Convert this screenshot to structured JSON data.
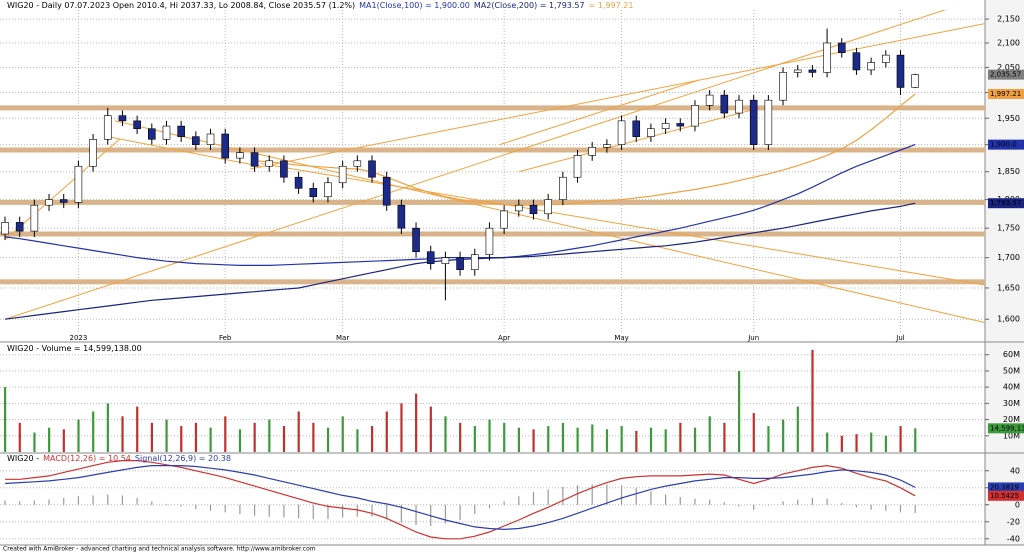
{
  "chart_data": [
    {
      "type": "candlestick",
      "title": "WIG20 - Daily 07.07.2023 Open 2010.4, Hi 2037.33, Lo 2008.84, Close 2035.57 (1.2%)",
      "categories": [
        null,
        null,
        null,
        null,
        null,
        "2023",
        null,
        null,
        null,
        null,
        null,
        null,
        null,
        null,
        null,
        "Feb",
        null,
        null,
        null,
        null,
        null,
        null,
        null,
        "Mar",
        null,
        null,
        null,
        null,
        null,
        null,
        null,
        null,
        null,
        null,
        "Apr",
        null,
        null,
        null,
        null,
        null,
        null,
        null,
        "May",
        null,
        null,
        null,
        null,
        null,
        null,
        null,
        null,
        "Jun",
        null,
        null,
        null,
        null,
        null,
        null,
        null,
        null,
        null,
        "Jul",
        null
      ],
      "open": [
        1740,
        1760,
        1745,
        1790,
        1800,
        1795,
        1860,
        1910,
        1955,
        1945,
        1930,
        1910,
        1935,
        1915,
        1900,
        1920,
        1875,
        1885,
        1860,
        1870,
        1840,
        1820,
        1805,
        1830,
        1860,
        1870,
        1840,
        1790,
        1750,
        1710,
        1690,
        1700,
        1680,
        1705,
        1750,
        1780,
        1790,
        1775,
        1800,
        1840,
        1880,
        1895,
        1900,
        1945,
        1915,
        1930,
        1940,
        1935,
        1975,
        1995,
        1960,
        1985,
        1900,
        1985,
        2040,
        2045,
        2040,
        2100,
        2080,
        2045,
        2060,
        2075,
        2010.4
      ],
      "high": [
        1770,
        1770,
        1800,
        1810,
        1810,
        1870,
        1920,
        1970,
        1965,
        1955,
        1940,
        1945,
        1945,
        1925,
        1930,
        1930,
        1895,
        1895,
        1880,
        1880,
        1850,
        1830,
        1840,
        1870,
        1880,
        1880,
        1850,
        1800,
        1760,
        1720,
        1710,
        1710,
        1715,
        1760,
        1790,
        1800,
        1800,
        1810,
        1850,
        1890,
        1905,
        1910,
        1955,
        1955,
        1940,
        1950,
        1950,
        1985,
        2005,
        2005,
        1995,
        1995,
        1995,
        2050,
        2055,
        2055,
        2130,
        2110,
        2090,
        2070,
        2085,
        2085,
        2037.33
      ],
      "low": [
        1730,
        1735,
        1735,
        1780,
        1785,
        1785,
        1850,
        1900,
        1935,
        1920,
        1900,
        1900,
        1905,
        1890,
        1890,
        1865,
        1865,
        1850,
        1850,
        1830,
        1810,
        1795,
        1795,
        1820,
        1850,
        1830,
        1780,
        1740,
        1700,
        1680,
        1630,
        1670,
        1670,
        1695,
        1740,
        1770,
        1765,
        1765,
        1790,
        1830,
        1870,
        1885,
        1890,
        1905,
        1905,
        1920,
        1925,
        1925,
        1965,
        1950,
        1950,
        1890,
        1890,
        1975,
        2030,
        2030,
        2030,
        2070,
        2035,
        2035,
        2050,
        1995,
        2008.84
      ],
      "close": [
        1760,
        1745,
        1790,
        1800,
        1795,
        1860,
        1910,
        1955,
        1945,
        1930,
        1910,
        1935,
        1915,
        1900,
        1920,
        1875,
        1885,
        1860,
        1870,
        1840,
        1820,
        1805,
        1830,
        1860,
        1870,
        1840,
        1790,
        1750,
        1710,
        1690,
        1700,
        1680,
        1705,
        1750,
        1780,
        1790,
        1775,
        1800,
        1840,
        1880,
        1895,
        1900,
        1945,
        1915,
        1930,
        1940,
        1935,
        1975,
        1995,
        1960,
        1985,
        1900,
        1985,
        2040,
        2045,
        2040,
        2100,
        2080,
        2045,
        2060,
        2075,
        2010,
        2035.57
      ],
      "up_color": "#ffffff",
      "down_color": "#1c2a8a",
      "series": [
        {
          "name": "MA1(Close,100) = 1,900.00",
          "color": "#2233aa",
          "values": [
            1735,
            1732,
            1728,
            1724,
            1720,
            1716,
            1712,
            1708,
            1704,
            1700,
            1697,
            1694,
            1692,
            1690,
            1689,
            1688,
            1687,
            1687,
            1687,
            1688,
            1689,
            1690,
            1691,
            1692,
            1693,
            1694,
            1695,
            1696,
            1697,
            1698,
            1700,
            1700,
            1700,
            1700,
            1700,
            1702,
            1705,
            1708,
            1712,
            1716,
            1720,
            1725,
            1730,
            1735,
            1740,
            1745,
            1750,
            1756,
            1762,
            1768,
            1774,
            1781,
            1790,
            1800,
            1810,
            1822,
            1835,
            1848,
            1860,
            1870,
            1880,
            1890,
            1900
          ]
        },
        {
          "name": "MA2(Close,200) = 1,793.57",
          "color": "#1a237e",
          "values": [
            1600,
            1603,
            1606,
            1609,
            1612,
            1615,
            1618,
            1621,
            1624,
            1627,
            1630,
            1632,
            1634,
            1636,
            1638,
            1640,
            1642,
            1644,
            1646,
            1648,
            1650,
            1655,
            1660,
            1665,
            1670,
            1675,
            1680,
            1685,
            1690,
            1693,
            1695,
            1697,
            1698,
            1699,
            1700,
            1701,
            1702,
            1704,
            1706,
            1708,
            1710,
            1712,
            1714,
            1716,
            1718,
            1720,
            1723,
            1726,
            1730,
            1734,
            1738,
            1742,
            1746,
            1750,
            1755,
            1760,
            1765,
            1770,
            1775,
            1780,
            1784,
            1788,
            1793.57
          ]
        },
        {
          "name": "= 1,997.21",
          "color": "#f0a040",
          "values": [
            null,
            null,
            null,
            null,
            null,
            null,
            null,
            null,
            null,
            null,
            null,
            null,
            null,
            null,
            null,
            null,
            null,
            1870,
            1868,
            1865,
            1862,
            1860,
            1858,
            1856,
            1855,
            1850,
            1840,
            1830,
            1820,
            1812,
            1805,
            1800,
            1796,
            1793,
            1791,
            1790,
            1790,
            1791,
            1792,
            1794,
            1796,
            1798,
            1800,
            1803,
            1806,
            1810,
            1814,
            1818,
            1823,
            1828,
            1834,
            1840,
            1846,
            1853,
            1861,
            1870,
            1880,
            1892,
            1908,
            1928,
            1950,
            1974,
            1997.21
          ]
        }
      ],
      "levels": [
        1970,
        1890,
        1795,
        1740,
        1660
      ],
      "level_color": "#d9b48a",
      "trend_color": "#f2a23c",
      "trendlines": [
        {
          "x": [
            0,
            66
          ],
          "y": [
            1600,
            2190
          ]
        },
        {
          "x": [
            7.5,
            66.7
          ],
          "y": [
            1945,
            1595
          ]
        },
        {
          "x": [
            7,
            17.4
          ],
          "y": [
            1915,
            1860
          ]
        },
        {
          "x": [
            17.4,
            66.7
          ],
          "y": [
            1865,
            1655
          ]
        },
        {
          "x": [
            16.7,
            66.7
          ],
          "y": [
            1855,
            2140
          ]
        },
        {
          "x": [
            33.7,
            47.3
          ],
          "y": [
            1900,
            2025
          ]
        },
        {
          "x": [
            35,
            51.4
          ],
          "y": [
            1850,
            1970
          ]
        },
        {
          "x": [
            0,
            7.8
          ],
          "y": [
            1730,
            1910
          ]
        }
      ],
      "tags": [
        {
          "value": 2035.57,
          "label": "2,035.57",
          "color": "#7f7f7f"
        },
        {
          "value": 1997.21,
          "label": "1,997.21",
          "color": "#f0a040"
        },
        {
          "value": 1900,
          "label": "1,900.0",
          "color": "#2233aa"
        },
        {
          "value": 1793.57,
          "label": "1,793.57",
          "color": "#1a237e"
        }
      ],
      "log": true,
      "grid": true,
      "ylim": [
        1580,
        2165
      ],
      "yticks": [
        {
          "value": 1600,
          "label": "1,600"
        },
        {
          "value": 1650,
          "label": "1,650"
        },
        {
          "value": 1700,
          "label": "1,700"
        },
        {
          "value": 1750,
          "label": "1,750"
        },
        {
          "value": 1800,
          "label": "1,800"
        },
        {
          "value": 1850,
          "label": "1,850"
        },
        {
          "value": 1900,
          "label": "1,900"
        },
        {
          "value": 1950,
          "label": "1,950"
        },
        {
          "value": 2000,
          "label": "2,000"
        },
        {
          "value": 2050,
          "label": "2,050"
        },
        {
          "value": 2100,
          "label": "2,100"
        },
        {
          "value": 2150,
          "label": "2,150"
        }
      ]
    },
    {
      "type": "bar",
      "title": "WIG20 - Volume = 14,599,138.00",
      "up_color": "#3c9a3c",
      "down_color": "#c03030",
      "values": [
        40000000,
        18000000,
        12000000,
        15000000,
        14000000,
        20000000,
        25000000,
        30000000,
        22000000,
        28000000,
        18000000,
        20000000,
        16000000,
        18000000,
        15000000,
        22000000,
        14000000,
        18000000,
        20000000,
        16000000,
        25000000,
        18000000,
        15000000,
        22000000,
        14000000,
        16000000,
        25000000,
        30000000,
        36000000,
        28000000,
        22000000,
        18000000,
        16000000,
        20000000,
        18000000,
        15000000,
        14000000,
        16000000,
        18000000,
        15000000,
        17000000,
        14000000,
        16000000,
        13000000,
        15000000,
        14000000,
        18000000,
        15000000,
        22000000,
        18000000,
        50000000,
        24000000,
        16000000,
        20000000,
        28000000,
        63000000,
        12000000,
        10000000,
        11000000,
        12000000,
        10000000,
        16000000,
        14599138
      ],
      "tags": [
        {
          "value": 14599138,
          "label": "14,599,138",
          "color": "#3c9a3c"
        }
      ],
      "grid": true,
      "ylim": [
        0,
        66000000
      ],
      "yticks": [
        {
          "value": 10000000,
          "label": "10M"
        },
        {
          "value": 20000000,
          "label": "20M"
        },
        {
          "value": 30000000,
          "label": "30M"
        },
        {
          "value": 40000000,
          "label": "40M"
        },
        {
          "value": 50000000,
          "label": "50M"
        },
        {
          "value": 60000000,
          "label": "60M"
        }
      ]
    },
    {
      "type": "line",
      "title": "WIG20 -",
      "series": [
        {
          "name": "MACD(12,26) = 10.54",
          "color": "#d03030",
          "values": [
            30,
            30,
            32,
            34,
            38,
            42,
            46,
            50,
            52,
            52,
            50,
            47,
            44,
            40,
            36,
            32,
            27,
            22,
            17,
            12,
            7,
            2,
            -2,
            -4,
            -6,
            -10,
            -16,
            -24,
            -32,
            -38,
            -40,
            -40,
            -37,
            -32,
            -25,
            -18,
            -10,
            -3,
            5,
            13,
            20,
            26,
            31,
            33,
            34,
            34,
            34,
            35,
            36,
            35,
            30,
            25,
            30,
            36,
            40,
            44,
            46,
            43,
            37,
            32,
            28,
            20,
            10.5425
          ]
        },
        {
          "name": "Signal(12,26,9) = 20.38",
          "color": "#2a3fb0",
          "values": [
            25,
            26,
            27,
            28,
            30,
            32,
            35,
            38,
            41,
            44,
            46,
            46,
            46,
            45,
            43,
            41,
            38,
            35,
            31,
            27,
            23,
            19,
            15,
            11,
            8,
            4,
            1,
            -3,
            -8,
            -13,
            -18,
            -22,
            -26,
            -28,
            -29,
            -28,
            -25,
            -21,
            -16,
            -10,
            -4,
            2,
            8,
            13,
            18,
            22,
            25,
            28,
            30,
            32,
            32,
            31,
            31,
            32,
            34,
            36,
            39,
            41,
            40,
            38,
            35,
            29,
            20.3819
          ]
        }
      ],
      "histogram": [
        5,
        4,
        5,
        6,
        8,
        10,
        11,
        12,
        11,
        8,
        4,
        1,
        -2,
        -5,
        -7,
        -9,
        -11,
        -13,
        -14,
        -15,
        -16,
        -17,
        -17,
        -15,
        -14,
        -14,
        -17,
        -21,
        -24,
        -25,
        -22,
        -18,
        -11,
        -4,
        4,
        10,
        15,
        18,
        21,
        23,
        24,
        24,
        23,
        20,
        16,
        12,
        9,
        7,
        6,
        3,
        -2,
        -6,
        -1,
        4,
        6,
        8,
        7,
        2,
        -3,
        -6,
        -7,
        -9,
        -9.84
      ],
      "histogram_color": "#9a9a9a",
      "tags": [
        {
          "value": 20.3819,
          "label": "20.3819",
          "color": "#2a3fb0"
        },
        {
          "value": 10.5425,
          "label": "10.5425",
          "color": "#d03030"
        }
      ],
      "grid": true,
      "ylim": [
        -45,
        55
      ],
      "yticks": [
        -40,
        -20,
        0,
        20,
        40
      ]
    }
  ],
  "footer": "Created with AmiBroker - advanced charting and technical analysis software. http://www.amibroker.com"
}
